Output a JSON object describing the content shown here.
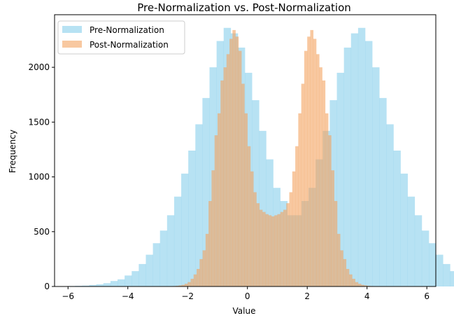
{
  "chart_data": {
    "type": "bar",
    "title": "Pre-Normalization vs. Post-Normalization",
    "xlabel": "Value",
    "ylabel": "Frequency",
    "xlim": [
      -6.45,
      6.3
    ],
    "ylim": [
      0,
      2480
    ],
    "xticks": [
      -6,
      -4,
      -2,
      0,
      2,
      4,
      6
    ],
    "yticks": [
      0,
      500,
      1000,
      1500,
      2000
    ],
    "legend_position": "top-left",
    "series": [
      {
        "name": "Pre-Normalization",
        "color": "#87ceeb",
        "opacity": 0.6,
        "bin_start": -6.0,
        "bin_width": 0.2366,
        "values": [
          4,
          6,
          8,
          14,
          20,
          30,
          50,
          65,
          100,
          140,
          205,
          290,
          395,
          510,
          650,
          820,
          1030,
          1240,
          1480,
          1720,
          2000,
          2240,
          2360,
          2310,
          2180,
          1950,
          1700,
          1420,
          1160,
          900,
          780,
          650,
          650,
          780,
          900,
          1160,
          1420,
          1700,
          1950,
          2180,
          2310,
          2360,
          2240,
          2000,
          1720,
          1480,
          1240,
          1030,
          820,
          650,
          510,
          395,
          290,
          205,
          140,
          100,
          65,
          50,
          30,
          20,
          14,
          8,
          6,
          4
        ]
      },
      {
        "name": "Post-Normalization",
        "color": "#f4a460",
        "opacity": 0.6,
        "bin_start": -2.6,
        "bin_width": 0.1,
        "values": [
          2,
          4,
          6,
          10,
          15,
          25,
          40,
          70,
          110,
          160,
          250,
          330,
          480,
          780,
          1060,
          1380,
          1580,
          1880,
          2000,
          2120,
          2260,
          2340,
          2280,
          2150,
          1850,
          1580,
          1280,
          1050,
          860,
          760,
          700,
          680,
          660,
          650,
          640,
          650,
          660,
          680,
          700,
          760,
          860,
          1050,
          1280,
          1580,
          1850,
          2150,
          2280,
          2340,
          2260,
          2120,
          2000,
          1880,
          1580,
          1380,
          1060,
          780,
          480,
          330,
          250,
          160,
          110,
          70,
          40,
          25,
          15,
          10,
          6,
          4,
          2
        ]
      }
    ]
  }
}
